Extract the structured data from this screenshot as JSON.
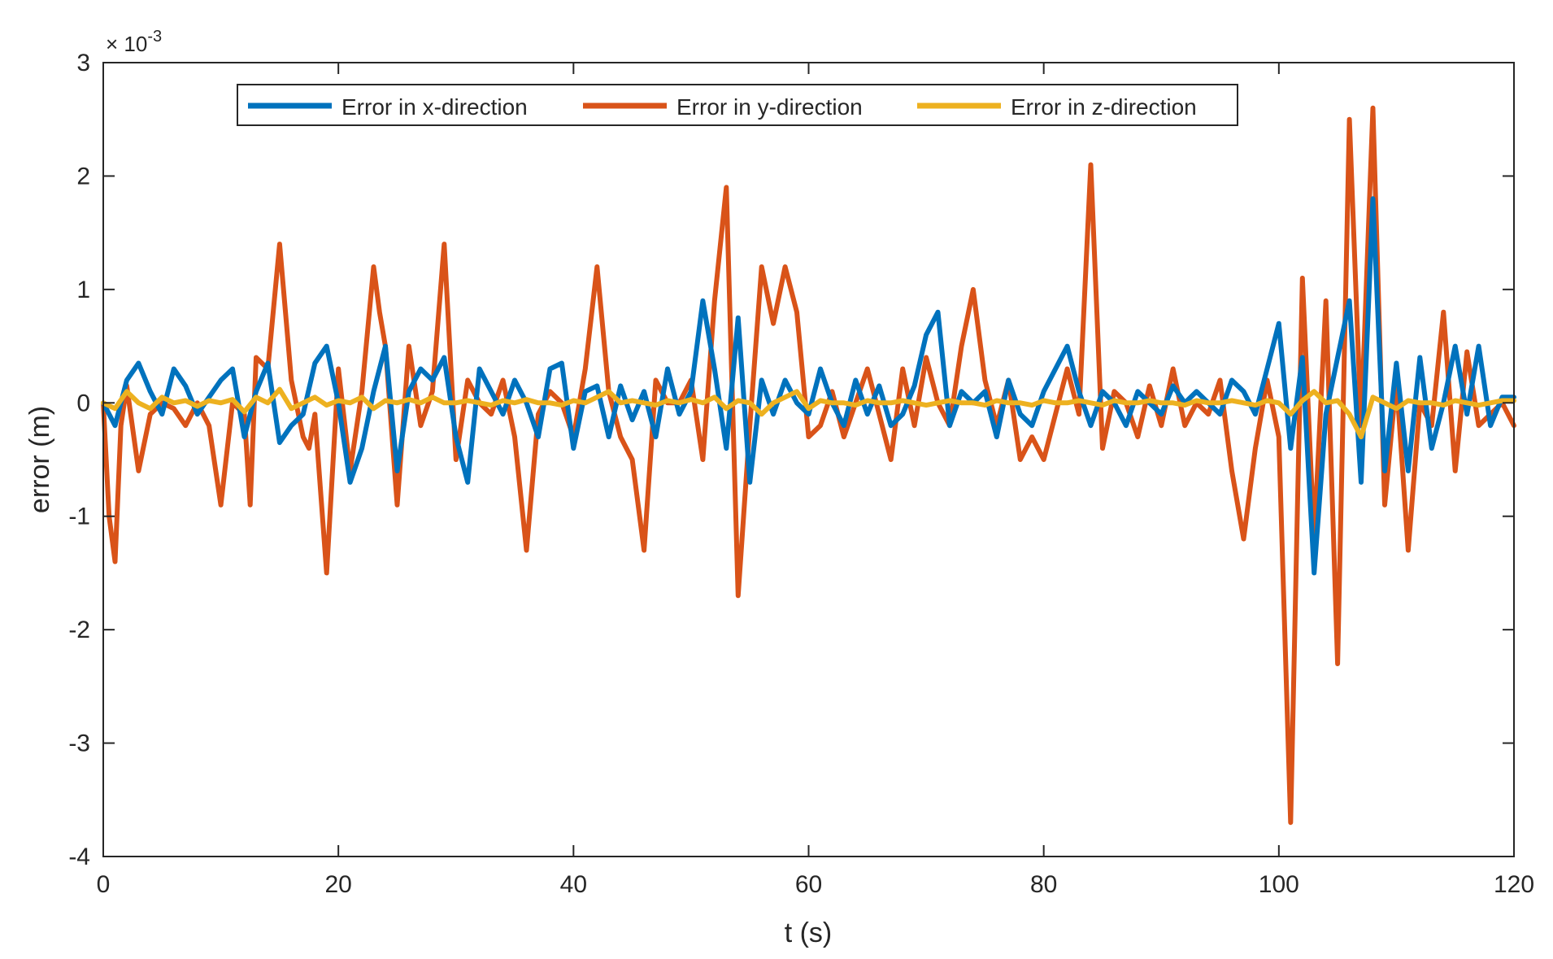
{
  "chart_data": {
    "type": "line",
    "title": "",
    "xlabel": "t (s)",
    "ylabel": "error (m)",
    "y_exponent_label": "× 10",
    "y_exponent_power": "-3",
    "xlim": [
      0,
      120
    ],
    "ylim": [
      -4,
      3
    ],
    "xticks": [
      0,
      20,
      40,
      60,
      80,
      100,
      120
    ],
    "yticks": [
      -4,
      -3,
      -2,
      -1,
      0,
      1,
      2,
      3
    ],
    "xtick_labels": [
      "0",
      "20",
      "40",
      "60",
      "80",
      "100",
      "120"
    ],
    "ytick_labels": [
      "-4",
      "-3",
      "-2",
      "-1",
      "0",
      "1",
      "2",
      "3"
    ],
    "grid": false,
    "legend_position": "top-center",
    "colors": {
      "x": "#0072BD",
      "y": "#D95319",
      "z": "#EDB120"
    },
    "series": [
      {
        "name": "Error in x-direction",
        "color": "#0072BD",
        "x": [
          0,
          1,
          2,
          3,
          4,
          5,
          6,
          7,
          8,
          9,
          10,
          11,
          12,
          13,
          14,
          15,
          16,
          17,
          18,
          19,
          20,
          21,
          22,
          23,
          24,
          25,
          26,
          27,
          28,
          29,
          30,
          31,
          32,
          33,
          34,
          35,
          36,
          37,
          38,
          39,
          40,
          41,
          42,
          43,
          44,
          45,
          46,
          47,
          48,
          49,
          50,
          51,
          52,
          53,
          54,
          55,
          56,
          57,
          58,
          59,
          60,
          61,
          62,
          63,
          64,
          65,
          66,
          67,
          68,
          69,
          70,
          71,
          72,
          73,
          74,
          75,
          76,
          77,
          78,
          79,
          80,
          81,
          82,
          83,
          84,
          85,
          86,
          87,
          88,
          89,
          90,
          91,
          92,
          93,
          94,
          95,
          96,
          97,
          98,
          99,
          100,
          101,
          102,
          103,
          104,
          105,
          106,
          107,
          108,
          109,
          110,
          111,
          112,
          113,
          114,
          115,
          116,
          117,
          118,
          119,
          120
        ],
        "y": [
          0.0,
          -0.2,
          0.2,
          0.35,
          0.1,
          -0.1,
          0.3,
          0.15,
          -0.1,
          0.05,
          0.2,
          0.3,
          -0.3,
          0.1,
          0.35,
          -0.35,
          -0.2,
          -0.1,
          0.35,
          0.5,
          0.0,
          -0.7,
          -0.4,
          0.1,
          0.5,
          -0.6,
          0.1,
          0.3,
          0.2,
          0.4,
          -0.3,
          -0.7,
          0.3,
          0.1,
          -0.1,
          0.2,
          0.0,
          -0.3,
          0.3,
          0.35,
          -0.4,
          0.1,
          0.15,
          -0.3,
          0.15,
          -0.15,
          0.1,
          -0.3,
          0.3,
          -0.1,
          0.1,
          0.9,
          0.3,
          -0.4,
          0.75,
          -0.7,
          0.2,
          -0.1,
          0.2,
          0.0,
          -0.1,
          0.3,
          0.0,
          -0.2,
          0.2,
          -0.1,
          0.15,
          -0.2,
          -0.1,
          0.15,
          0.6,
          0.8,
          -0.2,
          0.1,
          0.0,
          0.1,
          -0.3,
          0.2,
          -0.1,
          -0.2,
          0.1,
          0.3,
          0.5,
          0.1,
          -0.2,
          0.1,
          0.0,
          -0.2,
          0.1,
          0.0,
          -0.1,
          0.15,
          0.0,
          0.1,
          0.0,
          -0.1,
          0.2,
          0.1,
          -0.1,
          0.3,
          0.7,
          -0.4,
          0.4,
          -1.5,
          -0.1,
          0.4,
          0.9,
          -0.7,
          1.8,
          -0.6,
          0.35,
          -0.6,
          0.4,
          -0.4,
          0.0,
          0.5,
          -0.1,
          0.5,
          -0.2,
          0.05,
          0.05
        ]
      },
      {
        "name": "Error in y-direction",
        "color": "#D95319",
        "x": [
          0,
          0.5,
          1,
          1.5,
          2,
          3,
          4,
          5,
          6,
          7,
          8,
          9,
          10,
          11,
          12,
          12.5,
          13,
          14,
          15,
          16,
          17,
          17.5,
          18,
          19,
          20,
          21,
          22,
          23,
          23.5,
          24,
          25,
          26,
          27,
          28,
          29,
          30,
          31,
          32,
          33,
          34,
          35,
          36,
          37,
          38,
          39,
          40,
          41,
          42,
          43,
          44,
          45,
          46,
          47,
          48,
          49,
          50,
          51,
          52,
          53,
          54,
          55,
          56,
          57,
          58,
          59,
          60,
          61,
          62,
          63,
          64,
          65,
          66,
          67,
          68,
          69,
          70,
          71,
          72,
          73,
          74,
          75,
          76,
          77,
          78,
          79,
          80,
          81,
          82,
          83,
          84,
          85,
          86,
          87,
          88,
          89,
          90,
          91,
          92,
          93,
          94,
          95,
          96,
          97,
          98,
          99,
          100,
          101,
          102,
          103,
          104,
          105,
          106,
          107,
          108,
          109,
          110,
          111,
          112,
          113,
          114,
          115,
          116,
          117,
          118,
          119,
          120
        ],
        "y": [
          0.0,
          -1.0,
          -1.4,
          -0.2,
          0.15,
          -0.6,
          -0.1,
          0.0,
          -0.05,
          -0.2,
          0.0,
          -0.2,
          -0.9,
          0.0,
          -0.1,
          -0.9,
          0.4,
          0.3,
          1.4,
          0.2,
          -0.3,
          -0.4,
          -0.1,
          -1.5,
          0.3,
          -0.6,
          0.1,
          1.2,
          0.8,
          0.5,
          -0.9,
          0.5,
          -0.2,
          0.1,
          1.4,
          -0.5,
          0.2,
          0.0,
          -0.1,
          0.2,
          -0.3,
          -1.3,
          -0.1,
          0.1,
          0.0,
          -0.3,
          0.3,
          1.2,
          0.1,
          -0.3,
          -0.5,
          -1.3,
          0.2,
          0.0,
          0.0,
          0.2,
          -0.5,
          0.9,
          1.9,
          -1.7,
          -0.2,
          1.2,
          0.7,
          1.2,
          0.8,
          -0.3,
          -0.2,
          0.1,
          -0.3,
          0.0,
          0.3,
          -0.1,
          -0.5,
          0.3,
          -0.2,
          0.4,
          0.0,
          -0.2,
          0.5,
          1.0,
          0.2,
          -0.2,
          0.2,
          -0.5,
          -0.3,
          -0.5,
          -0.1,
          0.3,
          -0.1,
          2.1,
          -0.4,
          0.1,
          0.0,
          -0.3,
          0.15,
          -0.2,
          0.3,
          -0.2,
          0.0,
          -0.1,
          0.2,
          -0.6,
          -1.2,
          -0.4,
          0.2,
          -0.3,
          -3.7,
          1.1,
          -1.2,
          0.9,
          -2.3,
          2.5,
          -0.2,
          2.6,
          -0.9,
          0.2,
          -1.3,
          0.0,
          -0.2,
          0.8,
          -0.6,
          0.45,
          -0.2,
          -0.1,
          0.0,
          -0.2
        ]
      },
      {
        "name": "Error in z-direction",
        "color": "#EDB120",
        "x": [
          0,
          1,
          2,
          3,
          4,
          5,
          6,
          7,
          8,
          9,
          10,
          11,
          12,
          13,
          14,
          15,
          16,
          17,
          18,
          19,
          20,
          21,
          22,
          23,
          24,
          25,
          26,
          27,
          28,
          29,
          30,
          31,
          32,
          33,
          34,
          35,
          36,
          37,
          38,
          39,
          40,
          41,
          42,
          43,
          44,
          45,
          46,
          47,
          48,
          49,
          50,
          51,
          52,
          53,
          54,
          55,
          56,
          57,
          58,
          59,
          60,
          61,
          62,
          63,
          64,
          65,
          66,
          67,
          68,
          69,
          70,
          71,
          72,
          73,
          74,
          75,
          76,
          77,
          78,
          79,
          80,
          81,
          82,
          83,
          84,
          85,
          86,
          87,
          88,
          89,
          90,
          91,
          92,
          93,
          94,
          95,
          96,
          97,
          98,
          99,
          100,
          101,
          102,
          103,
          104,
          105,
          106,
          107,
          108,
          109,
          110,
          111,
          112,
          113,
          114,
          115,
          116,
          117,
          118,
          119,
          120
        ],
        "y": [
          0.0,
          -0.05,
          0.1,
          0.0,
          -0.05,
          0.05,
          0.0,
          0.02,
          -0.03,
          0.02,
          0.0,
          0.03,
          -0.08,
          0.05,
          0.0,
          0.12,
          -0.05,
          0.0,
          0.05,
          -0.02,
          0.02,
          0.0,
          0.05,
          -0.05,
          0.02,
          0.0,
          0.03,
          0.0,
          0.05,
          0.0,
          0.0,
          0.02,
          0.0,
          -0.02,
          0.02,
          0.0,
          0.03,
          0.0,
          0.0,
          -0.02,
          0.02,
          0.0,
          0.05,
          0.1,
          0.0,
          0.02,
          0.0,
          -0.02,
          0.02,
          0.0,
          0.03,
          0.0,
          0.05,
          -0.05,
          0.02,
          0.0,
          -0.1,
          0.0,
          0.05,
          0.1,
          -0.05,
          0.02,
          0.0,
          0.0,
          -0.02,
          0.02,
          0.0,
          0.0,
          0.02,
          0.0,
          -0.02,
          0.0,
          0.02,
          0.0,
          0.0,
          -0.02,
          0.02,
          0.0,
          0.0,
          -0.02,
          0.02,
          0.0,
          0.0,
          0.02,
          0.0,
          -0.02,
          0.02,
          0.0,
          0.0,
          0.02,
          0.0,
          0.0,
          -0.02,
          0.02,
          0.0,
          0.0,
          0.02,
          0.0,
          -0.02,
          0.02,
          0.0,
          -0.1,
          0.02,
          0.1,
          0.0,
          0.02,
          -0.1,
          -0.3,
          0.05,
          0.0,
          -0.05,
          0.02,
          0.0,
          0.0,
          -0.02,
          0.02,
          0.0,
          -0.02,
          0.0,
          0.02,
          0.02
        ]
      }
    ]
  }
}
